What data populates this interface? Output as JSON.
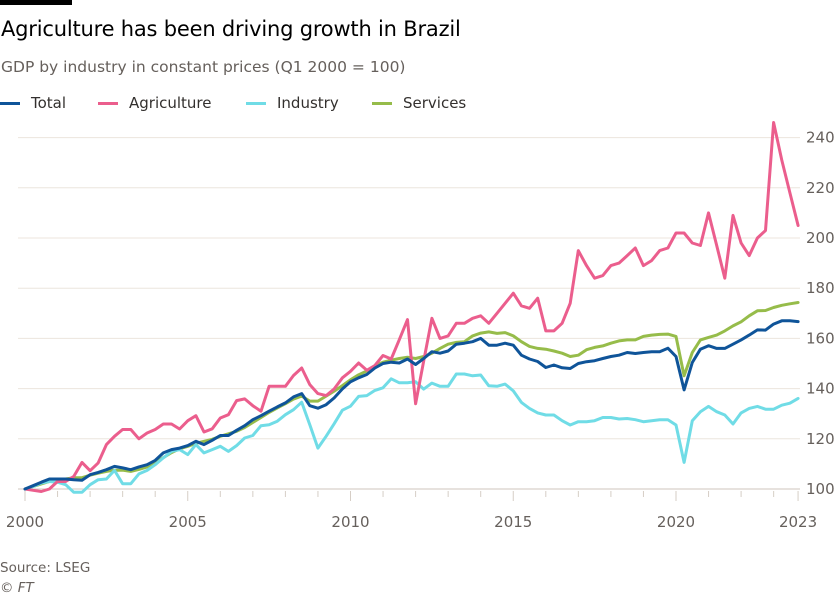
{
  "header": {
    "title": "Agriculture has been driving growth in Brazil",
    "subtitle": "GDP by industry in constant prices (Q1 2000 = 100)"
  },
  "footer": {
    "source": "Source: LSEG",
    "copyright": "© FT"
  },
  "chart_data": {
    "type": "line",
    "title": "Agriculture has been driving growth in Brazil",
    "subtitle": "GDP by industry in constant prices (Q1 2000 = 100)",
    "xlabel": "",
    "ylabel": "",
    "x_start": "2000 Q1",
    "x_frequency": "quarterly",
    "xlim": [
      2000,
      2023.75
    ],
    "ylim": [
      100,
      245
    ],
    "x_ticks": [
      "2000",
      "2005",
      "2010",
      "2015",
      "2020",
      "2023"
    ],
    "x_tick_values": [
      2000,
      2005,
      2010,
      2015,
      2020,
      2023.75
    ],
    "y_ticks": [
      "100",
      "120",
      "140",
      "160",
      "180",
      "200",
      "220",
      "240"
    ],
    "y_tick_values": [
      100,
      120,
      140,
      160,
      180,
      200,
      220,
      240
    ],
    "grid": true,
    "legend_position": "top-left",
    "series": [
      {
        "name": "Total",
        "color": "#0f5499",
        "values": [
          100,
          101.3,
          102.7,
          104,
          104,
          104,
          103.7,
          103.5,
          105.7,
          106.6,
          107.7,
          109,
          108.4,
          107.7,
          108.8,
          109.7,
          111.4,
          114.4,
          115.7,
          116.3,
          117.3,
          119,
          117.7,
          119.4,
          121.3,
          121.3,
          123.4,
          125.2,
          127.6,
          129.2,
          131,
          132.7,
          134.3,
          136.7,
          138,
          133.2,
          132.2,
          133.6,
          136.3,
          139.9,
          142.7,
          144.3,
          145.6,
          148.2,
          150,
          150.5,
          150.2,
          151.8,
          149.6,
          152,
          154.7,
          154.1,
          155,
          157.7,
          158.1,
          158.7,
          160,
          157.3,
          157.3,
          158.1,
          157.3,
          153.3,
          151.8,
          150.8,
          148.4,
          149.4,
          148.3,
          148,
          150,
          150.7,
          151.1,
          152,
          152.8,
          153.3,
          154.4,
          154,
          154.4,
          154.7,
          154.7,
          156.1,
          152.8,
          139.5,
          150.4,
          155.7,
          157.1,
          156,
          156,
          157.7,
          159.4,
          161.3,
          163.4,
          163.3,
          165.7,
          167,
          167,
          166.7
        ]
      },
      {
        "name": "Agriculture",
        "color": "#eb5e8d",
        "values": [
          100,
          99.5,
          99,
          100,
          103,
          103,
          105,
          110.6,
          107.3,
          110.4,
          117.7,
          121,
          123.7,
          123.7,
          120,
          122.3,
          123.7,
          125.9,
          125.9,
          123.9,
          127.2,
          129.2,
          122.7,
          124,
          128.3,
          129.6,
          135.2,
          135.9,
          133.2,
          131,
          140.9,
          140.9,
          140.9,
          145.2,
          148.2,
          141.6,
          138,
          137.2,
          139.9,
          144.3,
          146.9,
          150.2,
          147.3,
          149.2,
          153.2,
          151.8,
          159.5,
          167.5,
          134,
          151,
          168,
          160,
          161,
          166,
          166,
          168,
          169,
          166,
          170,
          174,
          178,
          173,
          172,
          176,
          163,
          163,
          166,
          174,
          195,
          189,
          184,
          185,
          189,
          190,
          193,
          196,
          189,
          191,
          195,
          196,
          202,
          202,
          198,
          197,
          210,
          197,
          184,
          209,
          198,
          193,
          200,
          203,
          246,
          231,
          218,
          205
        ]
      },
      {
        "name": "Industry",
        "color": "#70dce6",
        "values": [
          100,
          101,
          102.4,
          103,
          102.7,
          101.7,
          98.7,
          98.7,
          101.7,
          103.7,
          104,
          107.4,
          102.1,
          102.1,
          106,
          107.4,
          109.7,
          112.4,
          115,
          115.7,
          113.7,
          117.7,
          114.4,
          115.7,
          117,
          115,
          117.3,
          120.3,
          121.3,
          125.2,
          125.6,
          127,
          129.6,
          131.6,
          134.6,
          125.6,
          116.3,
          121,
          126,
          131.4,
          133,
          136.9,
          137.2,
          139.3,
          140.3,
          143.9,
          142.3,
          142.3,
          142.7,
          139.8,
          142.2,
          140.9,
          140.9,
          145.8,
          145.8,
          145.1,
          145.4,
          141.1,
          140.9,
          141.8,
          139.1,
          134.5,
          132.1,
          130.3,
          129.5,
          129.5,
          127.2,
          125.5,
          126.8,
          126.8,
          127.2,
          128.5,
          128.5,
          127.9,
          128.1,
          127.6,
          126.8,
          127.2,
          127.6,
          127.6,
          125.5,
          110.6,
          127.2,
          130.8,
          132.9,
          130.8,
          129.5,
          125.9,
          130.3,
          132.1,
          132.9,
          131.8,
          131.8,
          133.4,
          134.2,
          136.1
        ]
      },
      {
        "name": "Services",
        "color": "#96bc4a",
        "values": [
          100,
          101,
          102,
          103,
          103.5,
          104,
          104.5,
          104.5,
          105.5,
          106.3,
          107,
          107.5,
          107.5,
          107,
          107.8,
          108.8,
          110.5,
          112.5,
          114.5,
          116,
          117,
          118.2,
          119,
          119.8,
          121,
          122,
          123,
          124.5,
          126.5,
          128.5,
          130.5,
          132.3,
          134,
          135.8,
          137,
          135,
          135,
          137,
          139,
          141.2,
          143.5,
          145.5,
          147,
          149,
          150.5,
          151.3,
          152,
          152.5,
          152,
          152.8,
          154.1,
          156,
          157.7,
          158.4,
          158.7,
          161,
          162.1,
          162.6,
          162,
          162.3,
          161,
          158.7,
          156.8,
          156,
          155.7,
          155,
          154.1,
          152.8,
          153.3,
          155.5,
          156.4,
          157,
          158.1,
          159,
          159.4,
          159.4,
          160.8,
          161.3,
          161.6,
          161.7,
          160.8,
          145.1,
          154.4,
          159.4,
          160.4,
          161.3,
          163,
          165,
          166.6,
          169,
          171,
          171.1,
          172.3,
          173.2,
          173.8,
          174.3
        ]
      }
    ]
  }
}
